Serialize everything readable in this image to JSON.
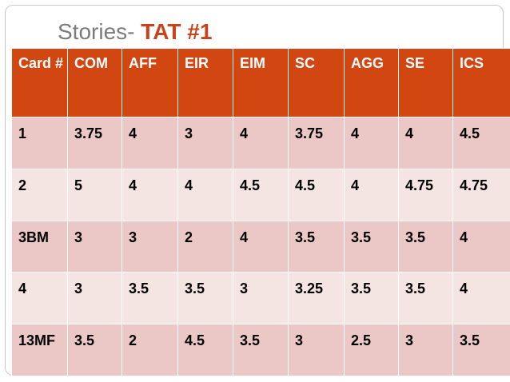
{
  "slide": {
    "title_prefix": "Stories- ",
    "title_bold": "TAT #1"
  },
  "colors": {
    "header_bg": "#d24612",
    "row_dark": "#ebc8c5",
    "row_light": "#f4e5e3",
    "title_accent": "#c8431a"
  },
  "table": {
    "headers": [
      "Card #",
      "COM",
      "AFF",
      "EIR",
      "EIM",
      "SC",
      "AGG",
      "SE",
      "ICS"
    ],
    "rows": [
      [
        "1",
        "3.75",
        "4",
        "3",
        "4",
        "3.75",
        "4",
        "4",
        "4.5"
      ],
      [
        "2",
        "5",
        "4",
        "4",
        "4.5",
        "4.5",
        "4",
        "4.75",
        "4.75"
      ],
      [
        "3BM",
        "3",
        "3",
        "2",
        "4",
        "3.5",
        "3.5",
        "3.5",
        "4"
      ],
      [
        "4",
        "3",
        "3.5",
        "3.5",
        "3",
        "3.25",
        "3.5",
        "3.5",
        "4"
      ],
      [
        "13MF",
        "3.5",
        "2",
        "4.5",
        "3.5",
        "3",
        "2.5",
        "3",
        "3.5"
      ]
    ]
  }
}
